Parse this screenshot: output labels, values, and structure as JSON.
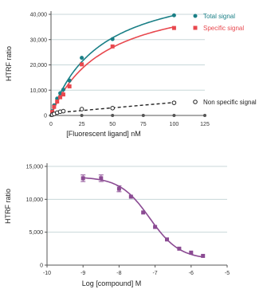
{
  "colors": {
    "total": "#1a7f86",
    "specific": "#e8484e",
    "nonspecific": "#222222",
    "dose": "#8b4b93",
    "grid": "#c8d7d9",
    "axis": "#555555"
  },
  "chart_data": [
    {
      "type": "scatter",
      "xlabel": "[Fluorescent ligand] nM",
      "ylabel": "HTRF ratio",
      "xlim": [
        0,
        125
      ],
      "ylim": [
        0,
        40000
      ],
      "xticks": [
        "0",
        "25",
        "50",
        "75",
        "100",
        "125"
      ],
      "yticks": [
        "0",
        "10,000",
        "20,000",
        "30,000",
        "40,000"
      ],
      "grid": "horizontal",
      "legend_position": "right",
      "series": [
        {
          "name": "Total signal",
          "x": [
            1,
            2.5,
            5,
            7.5,
            10,
            15,
            25,
            50,
            100
          ],
          "y": [
            1700,
            4000,
            6700,
            8800,
            10200,
            13800,
            22800,
            30200,
            39600
          ],
          "fit": "curve"
        },
        {
          "name": "Specific signal",
          "x": [
            1,
            2.5,
            5,
            7.5,
            10,
            15,
            25,
            50,
            100
          ],
          "y": [
            1400,
            3400,
            5500,
            7200,
            8300,
            11500,
            20200,
            27300,
            34600
          ],
          "fit": "curve"
        },
        {
          "name": "Non specific signal",
          "x": [
            1,
            2.5,
            5,
            7.5,
            10,
            25,
            50,
            100
          ],
          "y": [
            300,
            600,
            1100,
            1500,
            1700,
            2500,
            2900,
            5000
          ],
          "fit": "dashed-line"
        }
      ]
    },
    {
      "type": "scatter",
      "xlabel": "Log [compound] M",
      "ylabel": "HTRF ratio",
      "xlim": [
        -10,
        -5
      ],
      "ylim": [
        0,
        15000
      ],
      "xticks": [
        "-10",
        "-9",
        "-8",
        "-7",
        "-6",
        "-5"
      ],
      "yticks": [
        "0",
        "5,000",
        "10,000",
        "15,000"
      ],
      "grid": "horizontal",
      "series": [
        {
          "x": [
            -9.0,
            -8.5,
            -8.0,
            -7.67,
            -7.33,
            -7.0,
            -6.67,
            -6.33,
            -6.0,
            -5.67
          ],
          "y": [
            13200,
            13200,
            11600,
            10400,
            8000,
            5800,
            3900,
            2500,
            1900,
            1400
          ],
          "error": [
            500,
            500,
            450,
            0,
            0,
            0,
            0,
            0,
            0,
            0
          ],
          "fit": "sigmoid"
        }
      ]
    }
  ]
}
